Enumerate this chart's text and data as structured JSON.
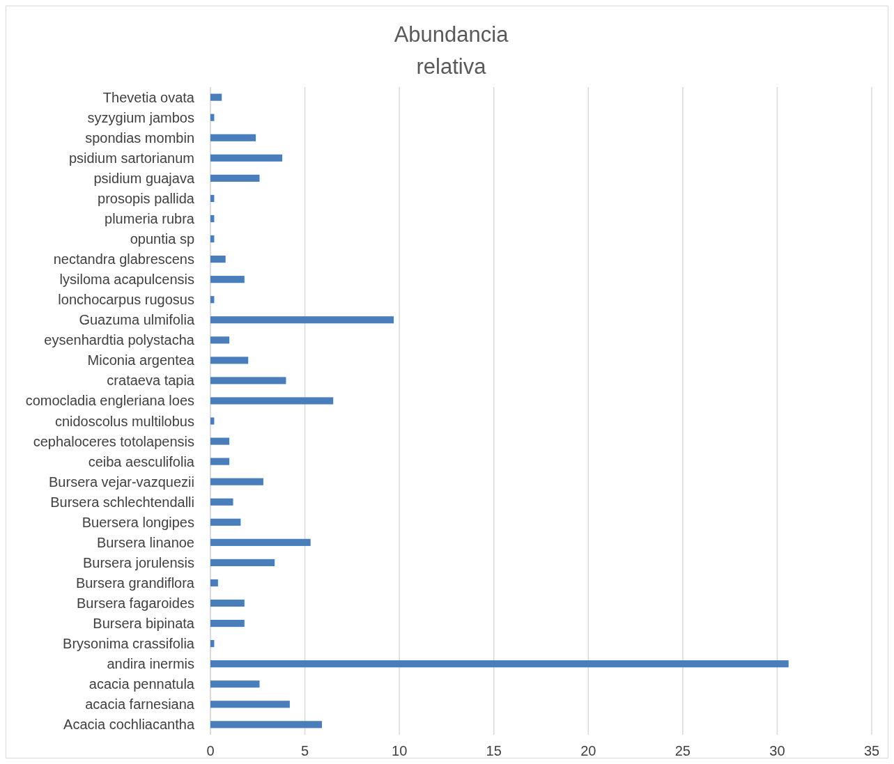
{
  "chart_data": {
    "type": "bar",
    "orientation": "horizontal",
    "title": "Abundancia relativa",
    "categories": [
      "Thevetia ovata",
      "syzygium jambos",
      "spondias mombin",
      "psidium sartorianum",
      "psidium guajava",
      "prosopis pallida",
      "plumeria rubra",
      "opuntia sp",
      "nectandra glabrescens",
      "lysiloma acapulcensis",
      "lonchocarpus rugosus",
      "Guazuma ulmifolia",
      "eysenhardtia polystacha",
      "Miconia argentea",
      "crataeva tapia",
      "comocladia engleriana loes",
      "cnidoscolus multilobus",
      "cephaloceres totolapensis",
      "ceiba aesculifolia",
      "Bursera vejar-vazquezii",
      "Bursera schlechtendalli",
      "Buersera longipes",
      "Bursera linanoe",
      "Bursera jorulensis",
      "Bursera grandiflora",
      "Bursera fagaroides",
      "Bursera bipinata",
      "Brysonima crassifolia",
      "andira inermis",
      "acacia pennatula",
      "acacia farnesiana",
      "Acacia cochliacantha"
    ],
    "values": [
      0.6,
      0.2,
      2.4,
      3.8,
      2.6,
      0.2,
      0.2,
      0.2,
      0.8,
      1.8,
      0.2,
      9.7,
      1.0,
      2.0,
      4.0,
      6.5,
      0.2,
      1.0,
      1.0,
      2.8,
      1.2,
      1.6,
      5.3,
      3.4,
      0.4,
      1.8,
      1.8,
      0.2,
      30.6,
      2.6,
      4.2,
      5.9
    ],
    "color": "#4a7ebb",
    "xlim": [
      0,
      35
    ],
    "xticks": [
      0,
      5,
      10,
      15,
      20,
      25,
      30,
      35
    ],
    "grid": "x"
  }
}
